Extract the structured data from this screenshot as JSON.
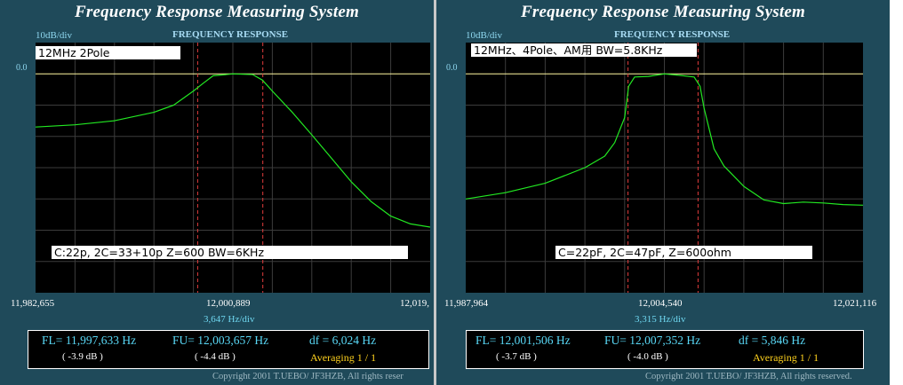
{
  "windows": [
    {
      "title": "Frequency Response Measuring System",
      "scale_label": "10dB/div",
      "plot_title": "FREQUENCY RESPONSE",
      "ref_level_label": "0.0",
      "caption_top": "12MHz  2Pole",
      "caption_bottom": "C:22p, 2C=33+10p   Z=600   BW=6KHz",
      "x_left": "11,982,655",
      "x_center": "12,000,889",
      "x_right": "12,019,",
      "hz_per_div": "3,647  Hz/div",
      "fl": "FL= 11,997,633  Hz",
      "fl_db": "( -3.9 dB )",
      "fu": "FU= 12,003,657  Hz",
      "fu_db": "( -4.4 dB )",
      "df": "df = 6,024  Hz",
      "averaging": "Averaging   1 / 1",
      "copyright": "Copyright 2001 T.UEBO/ JF3HZB, All rights reser"
    },
    {
      "title": "Frequency Response Measuring System",
      "scale_label": "10dB/div",
      "plot_title": "FREQUENCY RESPONSE",
      "ref_level_label": "0.0",
      "caption_top": "12MHz、4Pole、AM用 BW=5.8KHz",
      "caption_bottom": "C=22pF, 2C=47pF, Z=600ohm",
      "x_left": "11,987,964",
      "x_center": "12,004,540",
      "x_right": "12,021,116",
      "hz_per_div": "3,315  Hz/div",
      "fl": "FL= 12,001,506  Hz",
      "fl_db": "( -3.7 dB )",
      "fu": "FU= 12,007,352  Hz",
      "fu_db": "( -4.0 dB )",
      "df": "df = 5,846  Hz",
      "averaging": "Averaging   1 / 1",
      "copyright": "Copyright 2001 T.UEBO/ JF3HZB, All rights reserved."
    }
  ],
  "colors": {
    "background": "#1f4a5a",
    "plot_bg": "#000000",
    "grid": "#3c3c3c",
    "trace": "#22e822",
    "reference": "#fff8a0",
    "markers": "#e23c3c"
  },
  "chart_data": [
    {
      "type": "line",
      "grid": "on",
      "xlim": [
        11982655,
        12019123
      ],
      "ylabel": "10dB/div",
      "ylim": [
        -70,
        10
      ],
      "series": [
        {
          "x": [
            11982655,
            11986302,
            11989949,
            11993596,
            11995420,
            11997243,
            11998155,
            11999067,
            12000889,
            12002713,
            12003625,
            12004536,
            12006360,
            12008183,
            12010007,
            12011830,
            12013654,
            12015477,
            12017301,
            12019123
          ],
          "y": [
            -17.0,
            -16.3,
            -15.0,
            -12.3,
            -10.0,
            -5.5,
            -3.0,
            -0.6,
            0.0,
            -0.2,
            -2.0,
            -5.5,
            -12.2,
            -19.5,
            -27.0,
            -34.5,
            -40.8,
            -45.5,
            -48.0,
            -49.0
          ]
        }
      ],
      "markers_x": [
        11997633,
        12003657
      ]
    },
    {
      "type": "line",
      "grid": "on",
      "xlim": [
        11987964,
        12021116
      ],
      "ylabel": "10dB/div",
      "ylim": [
        -70,
        10
      ],
      "series": [
        {
          "x": [
            11987964,
            11991279,
            11994594,
            11997909,
            11999567,
            12000396,
            12001224,
            12001555,
            12002053,
            12003214,
            12004540,
            12005866,
            12007027,
            12007524,
            12007856,
            12008684,
            12009513,
            12011171,
            12012828,
            12014486,
            12016143,
            12017801,
            12019458,
            12021116
          ],
          "y": [
            -40.0,
            -38.0,
            -35.0,
            -30.0,
            -26.3,
            -22.0,
            -14.0,
            -4.0,
            -1.0,
            -0.8,
            0.0,
            -0.5,
            -1.0,
            -4.0,
            -11.0,
            -24.0,
            -29.5,
            -36.0,
            -40.3,
            -41.5,
            -41.0,
            -41.3,
            -41.8,
            -42.0
          ]
        }
      ],
      "markers_x": [
        12001506,
        12007352
      ]
    }
  ]
}
